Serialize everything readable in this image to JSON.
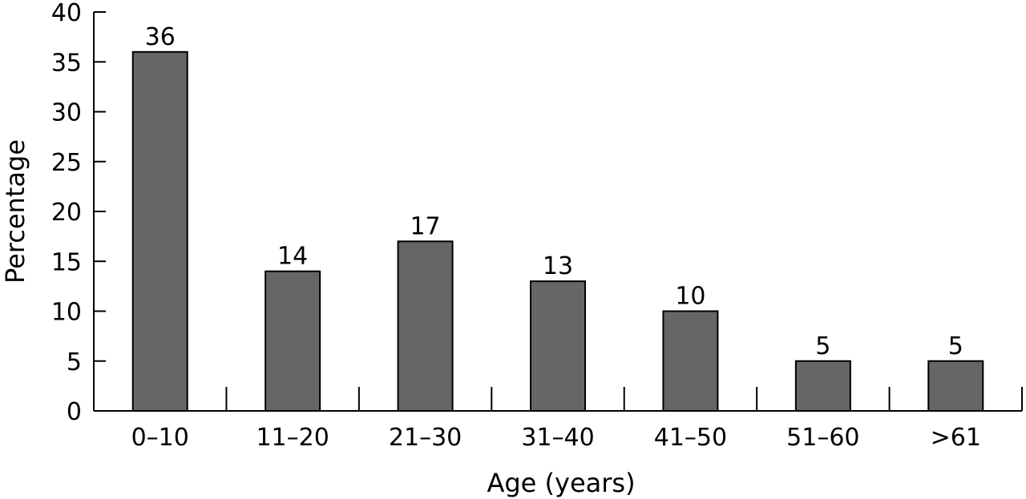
{
  "chart_data": {
    "type": "bar",
    "categories": [
      "0–10",
      "11–20",
      "21–30",
      "31–40",
      "41–50",
      "51–60",
      ">61"
    ],
    "values": [
      36,
      14,
      17,
      13,
      10,
      5,
      5
    ],
    "data_labels": [
      "36",
      "14",
      "17",
      "13",
      "10",
      "5",
      "5"
    ],
    "title": "",
    "xlabel": "Age (years)",
    "ylabel": "Percentage",
    "ylim": [
      0,
      40
    ],
    "yticks": [
      0,
      5,
      10,
      15,
      20,
      25,
      30,
      35,
      40
    ],
    "ytick_labels": [
      "0",
      "5",
      "10",
      "15",
      "20",
      "25",
      "30",
      "35",
      "40"
    ],
    "grid": false,
    "legend": "none",
    "bar_color": "#666666",
    "bar_edge_color": "#000000"
  }
}
